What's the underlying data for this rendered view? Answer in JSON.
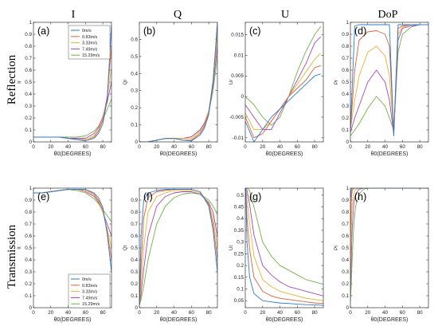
{
  "column_titles": [
    "I",
    "Q",
    "U",
    "DoP"
  ],
  "row_titles": [
    "Reflection",
    "Transmission"
  ],
  "chart_data": [
    {
      "type": "line",
      "panel": "(a)",
      "xlabel": "θ0(DEGREES)",
      "ylabel": "Ir",
      "xlim": [
        0,
        90
      ],
      "ylim": [
        0,
        1
      ],
      "xticks": [
        "0",
        "20",
        "40",
        "60",
        "80"
      ],
      "yticks": [
        "0",
        "0.1",
        "0.2",
        "0.3",
        "0.4",
        "0.5",
        "0.6",
        "0.7",
        "0.8",
        "0.9",
        "1"
      ],
      "x": [
        0,
        10,
        20,
        30,
        40,
        50,
        60,
        70,
        75,
        80,
        85,
        90
      ],
      "series": [
        {
          "name": "0m/s",
          "values": [
            0.04,
            0.04,
            0.04,
            0.04,
            0.03,
            0.02,
            0.01,
            0.03,
            0.07,
            0.15,
            0.35,
            0.98
          ]
        },
        {
          "name": "0.83m/s",
          "values": [
            0.04,
            0.04,
            0.04,
            0.04,
            0.03,
            0.02,
            0.01,
            0.04,
            0.09,
            0.18,
            0.38,
            0.8
          ]
        },
        {
          "name": "3.33m/s",
          "values": [
            0.04,
            0.04,
            0.04,
            0.04,
            0.03,
            0.02,
            0.02,
            0.05,
            0.1,
            0.2,
            0.36,
            0.62
          ]
        },
        {
          "name": "7.49m/s",
          "values": [
            0.04,
            0.04,
            0.04,
            0.04,
            0.03,
            0.03,
            0.03,
            0.07,
            0.12,
            0.21,
            0.33,
            0.5
          ]
        },
        {
          "name": "15.29m/s",
          "values": [
            0.04,
            0.04,
            0.04,
            0.04,
            0.04,
            0.04,
            0.05,
            0.09,
            0.13,
            0.19,
            0.27,
            0.36
          ]
        }
      ]
    },
    {
      "type": "line",
      "panel": "(b)",
      "xlabel": "θ0(DEGREES)",
      "ylabel": "Qr",
      "xlim": [
        0,
        90
      ],
      "ylim": [
        0,
        0.7
      ],
      "xticks": [
        "0",
        "20",
        "40",
        "60",
        "80"
      ],
      "yticks": [
        "0",
        "0.1",
        "0.2",
        "0.3",
        "0.4",
        "0.5",
        "0.6"
      ],
      "x": [
        0,
        10,
        20,
        30,
        40,
        50,
        60,
        70,
        75,
        80,
        85,
        90
      ],
      "series": [
        {
          "name": "0m/s",
          "values": [
            0,
            0,
            0.01,
            0.02,
            0.02,
            0.01,
            0.005,
            0.04,
            0.08,
            0.16,
            0.35,
            0.7
          ]
        },
        {
          "name": "0.83m/s",
          "values": [
            0,
            0,
            0.01,
            0.02,
            0.02,
            0.01,
            0.01,
            0.05,
            0.09,
            0.17,
            0.36,
            0.68
          ]
        },
        {
          "name": "3.33m/s",
          "values": [
            0,
            0,
            0.01,
            0.02,
            0.02,
            0.02,
            0.02,
            0.06,
            0.1,
            0.18,
            0.35,
            0.62
          ]
        },
        {
          "name": "7.49m/s",
          "values": [
            0,
            0,
            0.01,
            0.02,
            0.02,
            0.02,
            0.03,
            0.07,
            0.11,
            0.18,
            0.33,
            0.56
          ]
        },
        {
          "name": "15.29m/s",
          "values": [
            0,
            0,
            0.01,
            0.02,
            0.02,
            0.02,
            0.03,
            0.07,
            0.11,
            0.17,
            0.3,
            0.5
          ]
        }
      ]
    },
    {
      "type": "line",
      "panel": "(c)",
      "xlabel": "θ0(DEGREES)",
      "ylabel": "Ur",
      "xlim": [
        0,
        90
      ],
      "ylim": [
        -0.011,
        0.018
      ],
      "xticks": [
        "0",
        "20",
        "40",
        "60",
        "80"
      ],
      "yticks": [
        "-0.01",
        "-0.005",
        "0",
        "0.005",
        "0.01",
        "0.015"
      ],
      "x": [
        0,
        10,
        20,
        30,
        40,
        50,
        60,
        70,
        80,
        87
      ],
      "series": [
        {
          "name": "0m/s",
          "values": [
            -0.006,
            -0.011,
            -0.008,
            -0.005,
            -0.003,
            -0.001,
            0.001,
            0.003,
            0.005,
            0.0055
          ]
        },
        {
          "name": "0.83m/s",
          "values": [
            -0.005,
            -0.01,
            -0.009,
            -0.006,
            -0.003,
            0,
            0.002,
            0.004,
            0.007,
            0.0075
          ]
        },
        {
          "name": "3.33m/s",
          "values": [
            -0.004,
            -0.008,
            -0.008,
            -0.006,
            -0.003,
            0,
            0.003,
            0.006,
            0.009,
            0.0105
          ]
        },
        {
          "name": "7.49m/s",
          "values": [
            -0.002,
            -0.005,
            -0.008,
            -0.008,
            -0.004,
            0,
            0.004,
            0.008,
            0.013,
            0.0145
          ]
        },
        {
          "name": "15.29m/s",
          "values": [
            0,
            -0.002,
            -0.005,
            -0.007,
            -0.005,
            0,
            0.006,
            0.011,
            0.015,
            0.017
          ]
        }
      ]
    },
    {
      "type": "line",
      "panel": "(d)",
      "xlabel": "θ0(DEGREES)",
      "ylabel": "Pr",
      "xlim": [
        0,
        90
      ],
      "ylim": [
        0,
        1
      ],
      "xticks": [
        "0",
        "20",
        "40",
        "60",
        "80"
      ],
      "yticks": [
        "0",
        "0.1",
        "0.2",
        "0.3",
        "0.4",
        "0.5",
        "0.6",
        "0.7",
        "0.8",
        "0.9",
        "1"
      ],
      "x": [
        0,
        5,
        10,
        20,
        30,
        40,
        45,
        50,
        55,
        60,
        70,
        80,
        90
      ],
      "series": [
        {
          "name": "0m/s",
          "values": [
            0.1,
            0.97,
            0.98,
            0.98,
            0.98,
            0.98,
            0.98,
            0.05,
            0.98,
            0.98,
            0.98,
            0.98,
            0.98
          ]
        },
        {
          "name": "0.83m/s",
          "values": [
            0.1,
            0.6,
            0.85,
            0.92,
            0.93,
            0.9,
            0.8,
            0.08,
            0.95,
            0.97,
            0.98,
            0.98,
            0.98
          ]
        },
        {
          "name": "3.33m/s",
          "values": [
            0.1,
            0.35,
            0.55,
            0.75,
            0.8,
            0.72,
            0.55,
            0.07,
            0.9,
            0.96,
            0.98,
            0.98,
            0.98
          ]
        },
        {
          "name": "7.49m/s",
          "values": [
            0.08,
            0.2,
            0.3,
            0.5,
            0.6,
            0.5,
            0.35,
            0.06,
            0.85,
            0.95,
            0.97,
            0.98,
            0.98
          ]
        },
        {
          "name": "15.29m/s",
          "values": [
            0.05,
            0.1,
            0.15,
            0.28,
            0.38,
            0.3,
            0.2,
            0.1,
            0.75,
            0.9,
            0.96,
            0.98,
            0.98
          ]
        }
      ]
    },
    {
      "type": "line",
      "panel": "(e)",
      "xlabel": "θ0(DEGREES)",
      "ylabel": "It",
      "xlim": [
        0,
        90
      ],
      "ylim": [
        0,
        1
      ],
      "xticks": [
        "0",
        "20",
        "40",
        "60",
        "80"
      ],
      "yticks": [
        "0",
        "0.1",
        "0.2",
        "0.3",
        "0.4",
        "0.5",
        "0.6",
        "0.7",
        "0.8",
        "0.9",
        "1"
      ],
      "x": [
        0,
        10,
        20,
        30,
        40,
        50,
        60,
        70,
        75,
        80,
        85,
        90
      ],
      "series": [
        {
          "name": "0m/s",
          "values": [
            0.96,
            0.96,
            0.97,
            0.98,
            0.99,
            0.99,
            0.99,
            0.96,
            0.92,
            0.84,
            0.62,
            0.3
          ]
        },
        {
          "name": "0.83m/s",
          "values": [
            0.96,
            0.96,
            0.97,
            0.98,
            0.99,
            0.99,
            0.99,
            0.95,
            0.9,
            0.82,
            0.64,
            0.4
          ]
        },
        {
          "name": "3.33m/s",
          "values": [
            0.96,
            0.96,
            0.97,
            0.98,
            0.99,
            0.99,
            0.98,
            0.94,
            0.89,
            0.8,
            0.66,
            0.5
          ]
        },
        {
          "name": "7.49m/s",
          "values": [
            0.96,
            0.96,
            0.97,
            0.98,
            0.99,
            0.99,
            0.97,
            0.93,
            0.88,
            0.8,
            0.7,
            0.6
          ]
        },
        {
          "name": "15.29m/s",
          "values": [
            0.96,
            0.96,
            0.97,
            0.98,
            0.99,
            0.98,
            0.96,
            0.91,
            0.87,
            0.82,
            0.77,
            0.72
          ]
        }
      ]
    },
    {
      "type": "line",
      "panel": "(f)",
      "xlabel": "θ0(DEGREES)",
      "ylabel": "Qt",
      "xlim": [
        0,
        90
      ],
      "ylim": [
        0,
        1
      ],
      "xticks": [
        "0",
        "20",
        "40",
        "60",
        "80"
      ],
      "yticks": [
        "0",
        "0.1",
        "0.2",
        "0.3",
        "0.4",
        "0.5",
        "0.6",
        "0.7",
        "0.8",
        "0.9"
      ],
      "x": [
        0,
        2,
        5,
        10,
        20,
        30,
        40,
        50,
        60,
        70,
        80,
        85,
        90
      ],
      "series": [
        {
          "name": "0m/s",
          "values": [
            0.02,
            0.6,
            0.9,
            0.96,
            0.98,
            0.99,
            0.99,
            0.99,
            0.99,
            0.97,
            0.85,
            0.65,
            0.3
          ]
        },
        {
          "name": "0.83m/s",
          "values": [
            0.02,
            0.35,
            0.75,
            0.92,
            0.97,
            0.98,
            0.99,
            0.99,
            0.99,
            0.97,
            0.86,
            0.7,
            0.4
          ]
        },
        {
          "name": "3.33m/s",
          "values": [
            0.02,
            0.2,
            0.5,
            0.8,
            0.93,
            0.96,
            0.98,
            0.98,
            0.98,
            0.96,
            0.87,
            0.75,
            0.5
          ]
        },
        {
          "name": "7.49m/s",
          "values": [
            0.02,
            0.12,
            0.32,
            0.6,
            0.85,
            0.93,
            0.96,
            0.97,
            0.97,
            0.95,
            0.88,
            0.8,
            0.6
          ]
        },
        {
          "name": "15.29m/s",
          "values": [
            0.02,
            0.07,
            0.18,
            0.4,
            0.7,
            0.85,
            0.92,
            0.95,
            0.96,
            0.95,
            0.9,
            0.85,
            0.78
          ]
        }
      ]
    },
    {
      "type": "line",
      "panel": "(g)",
      "xlabel": "θ0(DEGREES)",
      "ylabel": "Ut",
      "xlim": [
        0,
        90
      ],
      "ylim": [
        0.02,
        0.53
      ],
      "xticks": [
        "0",
        "20",
        "40",
        "60",
        "80"
      ],
      "yticks": [
        "0.05",
        "0.1",
        "0.15",
        "0.2",
        "0.25",
        "0.3",
        "0.35",
        "0.4",
        "0.45",
        "0.5"
      ],
      "x": [
        0.5,
        2,
        5,
        10,
        20,
        30,
        40,
        50,
        60,
        70,
        80,
        90
      ],
      "series": [
        {
          "name": "0m/s",
          "values": [
            0.53,
            0.3,
            0.15,
            0.08,
            0.05,
            0.045,
            0.04,
            0.038,
            0.035,
            0.033,
            0.032,
            0.03
          ]
        },
        {
          "name": "0.83m/s",
          "values": [
            0.53,
            0.4,
            0.27,
            0.15,
            0.09,
            0.07,
            0.06,
            0.055,
            0.05,
            0.045,
            0.04,
            0.038
          ]
        },
        {
          "name": "3.33m/s",
          "values": [
            0.53,
            0.48,
            0.38,
            0.24,
            0.14,
            0.11,
            0.09,
            0.08,
            0.07,
            0.06,
            0.055,
            0.05
          ]
        },
        {
          "name": "7.49m/s",
          "values": [
            0.53,
            0.52,
            0.46,
            0.33,
            0.2,
            0.16,
            0.13,
            0.11,
            0.1,
            0.09,
            0.08,
            0.07
          ]
        },
        {
          "name": "15.29m/s",
          "values": [
            0.53,
            0.53,
            0.52,
            0.45,
            0.3,
            0.24,
            0.2,
            0.18,
            0.16,
            0.14,
            0.13,
            0.12
          ]
        }
      ]
    },
    {
      "type": "line",
      "panel": "(h)",
      "xlabel": "θ0(DEGREES)",
      "ylabel": "Pt",
      "xlim": [
        0,
        90
      ],
      "ylim": [
        0,
        1
      ],
      "xticks": [
        "0",
        "20",
        "40",
        "60",
        "80"
      ],
      "yticks": [
        "0",
        "0.1",
        "0.2",
        "0.3",
        "0.4",
        "0.5",
        "0.6",
        "0.7",
        "0.8",
        "0.9",
        "1"
      ],
      "x": [
        0,
        1,
        2,
        4,
        6,
        10,
        15,
        20,
        30,
        90
      ],
      "series": [
        {
          "name": "0m/s",
          "values": [
            0.9,
            0.98,
            1,
            1,
            1,
            1,
            1,
            1,
            1,
            1
          ]
        },
        {
          "name": "0.83m/s",
          "values": [
            0.6,
            0.9,
            0.98,
            1,
            1,
            1,
            1,
            1,
            1,
            1
          ]
        },
        {
          "name": "3.33m/s",
          "values": [
            0.3,
            0.65,
            0.85,
            0.96,
            0.99,
            1,
            1,
            1,
            1,
            1
          ]
        },
        {
          "name": "7.49m/s",
          "values": [
            0.15,
            0.4,
            0.65,
            0.88,
            0.95,
            0.99,
            1,
            1,
            1,
            1
          ]
        },
        {
          "name": "15.29m/s",
          "values": [
            0.05,
            0.2,
            0.4,
            0.7,
            0.85,
            0.95,
            0.99,
            1,
            1,
            1
          ]
        }
      ]
    }
  ],
  "colors": [
    "#2b7bd0",
    "#e0603a",
    "#e8b230",
    "#a347b8",
    "#6fb446"
  ]
}
